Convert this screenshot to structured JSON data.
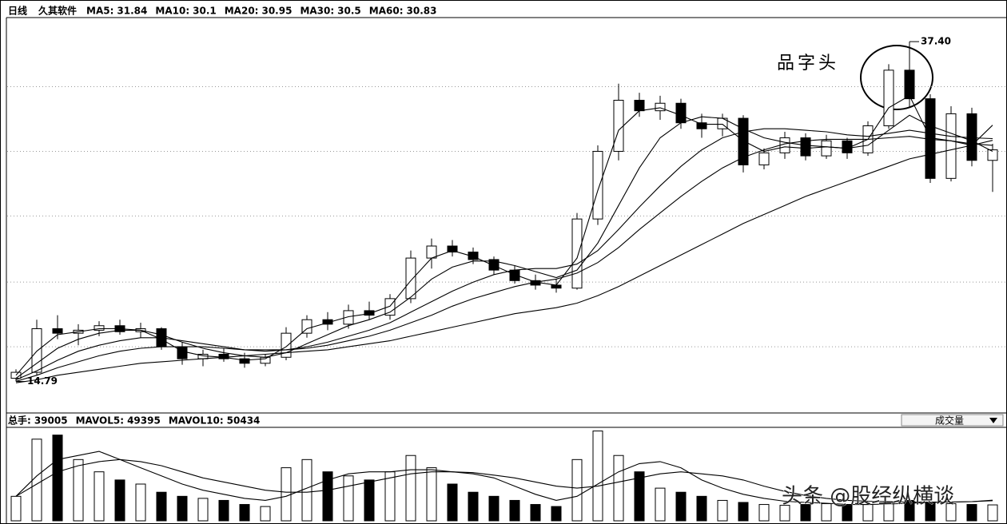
{
  "chart_data": [
    {
      "type": "candlestick",
      "period": "日线",
      "title": "久其软件",
      "ylim": [
        12.8,
        39
      ],
      "grid_values": [
        34.4,
        30.1,
        25.8,
        21.4,
        17.1
      ],
      "up_color": "#ffffff",
      "down_color": "#000000",
      "max_label": "37.40",
      "min_label": "14.79",
      "annotation": "品字头",
      "open": [
        15.0,
        15.4,
        18.3,
        18.0,
        18.2,
        18.5,
        18.1,
        18.3,
        17.1,
        16.3,
        16.6,
        16.3,
        16.0,
        16.4,
        18.0,
        18.9,
        18.6,
        19.5,
        19.2,
        20.3,
        23.0,
        23.8,
        23.4,
        22.9,
        22.2,
        21.5,
        21.2,
        21.0,
        25.6,
        30.1,
        33.5,
        32.8,
        33.3,
        32.0,
        31.6,
        32.3,
        29.2,
        30.0,
        31.0,
        29.8,
        30.8,
        30.0,
        31.8,
        35.5,
        33.6,
        28.3,
        32.6,
        29.5
      ],
      "high": [
        15.6,
        18.9,
        19.2,
        18.6,
        18.8,
        18.9,
        18.7,
        18.4,
        17.4,
        16.9,
        17.0,
        16.7,
        16.6,
        18.4,
        19.2,
        19.4,
        19.9,
        20.1,
        20.6,
        23.5,
        24.3,
        24.2,
        23.7,
        23.1,
        22.5,
        21.9,
        21.6,
        26.0,
        30.5,
        34.6,
        34.0,
        33.8,
        33.6,
        32.6,
        32.6,
        32.5,
        30.3,
        31.4,
        31.3,
        31.2,
        31.0,
        32.1,
        35.9,
        37.4,
        33.9,
        33.1,
        33.0,
        30.6
      ],
      "low": [
        14.79,
        15.2,
        17.6,
        17.2,
        17.8,
        17.9,
        17.7,
        16.9,
        15.9,
        15.8,
        16.1,
        15.7,
        15.8,
        16.2,
        17.7,
        18.2,
        18.3,
        18.9,
        18.9,
        20.0,
        22.3,
        23.1,
        22.6,
        21.9,
        21.3,
        20.9,
        20.7,
        20.9,
        25.2,
        29.5,
        32.4,
        32.2,
        31.6,
        31.0,
        31.1,
        28.7,
        28.9,
        29.6,
        29.5,
        29.6,
        29.6,
        29.8,
        31.6,
        33.0,
        28.0,
        28.1,
        29.1,
        27.4
      ],
      "close": [
        15.4,
        18.3,
        18.0,
        18.2,
        18.5,
        18.1,
        18.3,
        17.1,
        16.3,
        16.6,
        16.3,
        16.0,
        16.4,
        18.0,
        18.9,
        18.6,
        19.5,
        19.2,
        20.3,
        23.0,
        23.8,
        23.4,
        22.9,
        22.2,
        21.5,
        21.2,
        21.0,
        25.6,
        30.1,
        33.5,
        32.8,
        33.3,
        32.0,
        31.6,
        32.3,
        29.2,
        30.0,
        31.0,
        29.8,
        30.8,
        30.0,
        31.8,
        35.5,
        33.6,
        28.3,
        32.6,
        29.5,
        30.2
      ],
      "series": [
        {
          "name": "MA5:",
          "color": "#000000",
          "values": [
            15.2,
            16.8,
            17.9,
            18.1,
            18.3,
            18.3,
            18.2,
            17.6,
            16.8,
            16.5,
            16.4,
            16.2,
            16.3,
            17.1,
            18.3,
            18.7,
            19.1,
            19.3,
            19.8,
            21.5,
            23.0,
            23.5,
            23.1,
            22.5,
            21.9,
            21.4,
            21.2,
            23.0,
            27.5,
            31.5,
            32.8,
            33.0,
            32.5,
            31.9,
            31.9,
            30.8,
            30.1,
            30.4,
            30.3,
            30.4,
            30.3,
            30.9,
            33.0,
            33.8,
            31.0,
            30.8,
            30.5,
            31.84
          ]
        },
        {
          "name": "MA10:",
          "color": "#000000",
          "values": [
            15.0,
            16.0,
            17.0,
            17.6,
            18.0,
            18.2,
            18.2,
            17.9,
            17.4,
            17.0,
            16.7,
            16.5,
            16.4,
            16.7,
            17.3,
            17.9,
            18.5,
            18.9,
            19.4,
            20.4,
            21.6,
            22.4,
            22.8,
            22.8,
            22.5,
            22.1,
            21.7,
            22.2,
            24.0,
            26.5,
            29.0,
            31.0,
            32.0,
            32.4,
            32.3,
            31.6,
            31.0,
            30.7,
            30.5,
            30.4,
            30.3,
            30.5,
            31.5,
            32.5,
            31.8,
            31.3,
            30.8,
            30.1
          ]
        },
        {
          "name": "MA20:",
          "color": "#000000",
          "values": [
            14.9,
            15.5,
            16.2,
            16.8,
            17.2,
            17.5,
            17.7,
            17.7,
            17.5,
            17.3,
            17.1,
            16.9,
            16.8,
            16.9,
            17.1,
            17.4,
            17.8,
            18.2,
            18.7,
            19.4,
            20.1,
            20.8,
            21.4,
            21.9,
            22.2,
            22.3,
            22.3,
            22.6,
            23.5,
            24.9,
            26.4,
            27.8,
            29.1,
            30.2,
            31.0,
            31.4,
            31.6,
            31.6,
            31.5,
            31.4,
            31.2,
            31.1,
            31.3,
            31.5,
            31.3,
            31.1,
            31.0,
            30.95
          ]
        },
        {
          "name": "MA30:",
          "color": "#000000",
          "values": [
            14.8,
            15.2,
            15.7,
            16.1,
            16.5,
            16.8,
            17.0,
            17.1,
            17.1,
            17.1,
            17.0,
            16.9,
            16.9,
            16.9,
            17.0,
            17.2,
            17.5,
            17.8,
            18.2,
            18.7,
            19.2,
            19.8,
            20.3,
            20.7,
            21.1,
            21.4,
            21.6,
            22.0,
            22.7,
            23.7,
            24.9,
            26.0,
            27.1,
            28.1,
            29.0,
            29.7,
            30.2,
            30.6,
            30.8,
            30.9,
            30.9,
            30.9,
            31.0,
            31.1,
            30.9,
            30.8,
            30.6,
            30.5
          ]
        },
        {
          "name": "MA60:",
          "color": "#000000",
          "values": [
            14.7,
            14.9,
            15.2,
            15.4,
            15.6,
            15.8,
            16.0,
            16.1,
            16.2,
            16.3,
            16.4,
            16.5,
            16.6,
            16.7,
            16.8,
            16.9,
            17.1,
            17.3,
            17.5,
            17.8,
            18.1,
            18.4,
            18.7,
            19.0,
            19.3,
            19.5,
            19.7,
            20.0,
            20.5,
            21.1,
            21.8,
            22.5,
            23.2,
            23.9,
            24.6,
            25.3,
            25.9,
            26.5,
            27.1,
            27.6,
            28.1,
            28.6,
            29.1,
            29.6,
            29.9,
            30.2,
            30.5,
            30.83
          ]
        }
      ]
    },
    {
      "type": "bar",
      "ylim": [
        0,
        225000
      ],
      "name": "总手:",
      "indicator_menu": "成交量",
      "watermark": "头条 @股经纵横谈",
      "values": [
        60000,
        200000,
        210000,
        150000,
        120000,
        100000,
        90000,
        70000,
        60000,
        55000,
        50000,
        40000,
        35000,
        130000,
        150000,
        120000,
        110000,
        100000,
        120000,
        160000,
        130000,
        90000,
        70000,
        60000,
        50000,
        40000,
        35000,
        150000,
        220000,
        160000,
        120000,
        80000,
        70000,
        60000,
        50000,
        45000,
        40000,
        38000,
        40000,
        42000,
        38000,
        40000,
        45000,
        50000,
        45000,
        42000,
        40000,
        39005
      ],
      "series": [
        {
          "name": "MAVOL5:",
          "color": "#000000",
          "values": [
            60000,
            110000,
            150000,
            160000,
            170000,
            150000,
            130000,
            110000,
            90000,
            75000,
            65000,
            55000,
            50000,
            60000,
            80000,
            100000,
            115000,
            120000,
            120000,
            125000,
            125000,
            120000,
            115000,
            105000,
            85000,
            65000,
            50000,
            60000,
            90000,
            120000,
            140000,
            145000,
            130000,
            100000,
            80000,
            65000,
            55000,
            48000,
            45000,
            43000,
            40000,
            40000,
            41000,
            43000,
            45000,
            46000,
            47000,
            49395
          ]
        },
        {
          "name": "MAVOL10:",
          "color": "#000000",
          "values": [
            60000,
            90000,
            120000,
            135000,
            145000,
            150000,
            145000,
            135000,
            120000,
            105000,
            95000,
            85000,
            75000,
            70000,
            70000,
            75000,
            85000,
            95000,
            105000,
            115000,
            120000,
            120000,
            118000,
            112000,
            105000,
            95000,
            85000,
            80000,
            85000,
            95000,
            105000,
            115000,
            120000,
            115000,
            110000,
            100000,
            85000,
            72000,
            62000,
            55000,
            50000,
            48000,
            47000,
            46000,
            46000,
            46000,
            47000,
            50434
          ]
        }
      ]
    }
  ]
}
